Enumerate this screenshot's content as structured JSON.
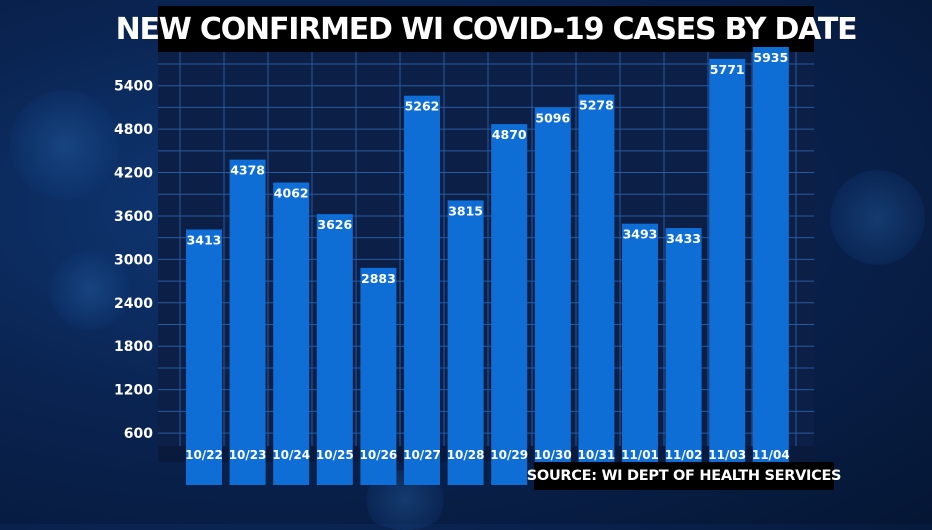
{
  "chart_data": {
    "type": "bar",
    "title": "NEW CONFIRMED WI COVID-19 CASES BY DATE",
    "source": "SOURCE: WI DEPT OF HEALTH SERVICES",
    "categories": [
      "10/22",
      "10/23",
      "10/24",
      "10/25",
      "10/26",
      "10/27",
      "10/28",
      "10/29",
      "10/30",
      "10/31",
      "11/01",
      "11/02",
      "11/03",
      "11/04"
    ],
    "values": [
      3413,
      4378,
      4062,
      3626,
      2883,
      5262,
      3815,
      4870,
      5096,
      5278,
      3493,
      3433,
      5771,
      5935
    ],
    "value_labels": [
      "3413",
      "4378",
      "4062",
      "3626",
      "2883",
      "5262",
      "3815",
      "4870",
      "5096",
      "5278",
      "3493",
      "3433",
      "5771",
      "5935"
    ],
    "y_ticks": [
      600,
      1200,
      1800,
      2400,
      3000,
      3600,
      4200,
      4800,
      5400
    ],
    "y_tick_labels": [
      "600",
      "1200",
      "1800",
      "2400",
      "3000",
      "3600",
      "4200",
      "4800",
      "5400"
    ],
    "ylim": [
      0,
      6000
    ],
    "grid": true,
    "bar_color": "#0f6ed6"
  }
}
